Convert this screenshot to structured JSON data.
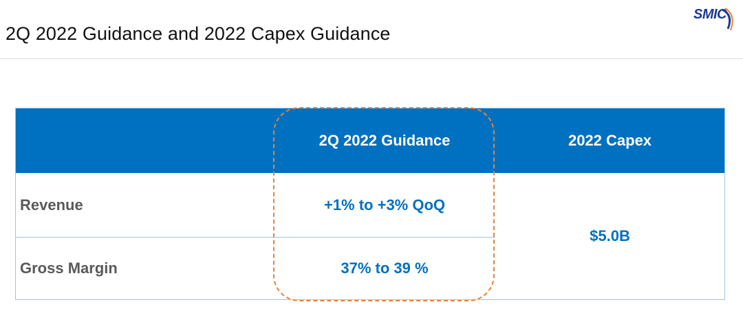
{
  "slide": {
    "title": "2Q 2022 Guidance and 2022 Capex Guidance",
    "logo_text": "SMIC"
  },
  "table": {
    "headers": [
      "",
      "2Q 2022 Guidance",
      "2022 Capex"
    ],
    "rows": [
      {
        "label": "Revenue",
        "guidance": "+1% to +3% QoQ"
      },
      {
        "label": "Gross Margin",
        "guidance": "37% to 39 %"
      }
    ],
    "capex_value": "$5.0B"
  },
  "colors": {
    "header_bg": "#0070c0",
    "value_text": "#0070c0",
    "label_text": "#595959",
    "highlight_border": "#e8823a",
    "logo": "#1d3c8f"
  },
  "icons": {
    "logo": "smic-logo"
  }
}
